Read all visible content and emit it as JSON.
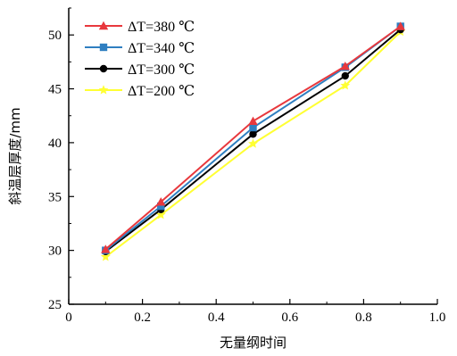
{
  "chart_data": {
    "type": "line",
    "title": "",
    "xlabel": "无量纲时间",
    "ylabel": "斜温层厚度/mm",
    "xlim": [
      0,
      1.0
    ],
    "ylim": [
      25,
      52.5
    ],
    "x_ticks": [
      "0",
      "0.2",
      "0.4",
      "0.6",
      "0.8",
      "1.0"
    ],
    "y_ticks": [
      "25",
      "30",
      "35",
      "40",
      "45",
      "50"
    ],
    "grid": false,
    "legend_position": "top-left",
    "x": [
      0.1,
      0.25,
      0.5,
      0.75,
      0.9
    ],
    "series": [
      {
        "name": "ΔT=380 ℃",
        "color": "#e8383d",
        "marker": "triangle",
        "values": [
          30.1,
          34.5,
          42.0,
          47.1,
          50.8
        ]
      },
      {
        "name": "ΔT=340 ℃",
        "color": "#2f7fc1",
        "marker": "square",
        "values": [
          30.0,
          34.1,
          41.4,
          47.0,
          50.8
        ]
      },
      {
        "name": "ΔT=300 ℃",
        "color": "#000000",
        "marker": "circle",
        "values": [
          29.9,
          33.8,
          40.8,
          46.2,
          50.5
        ]
      },
      {
        "name": "ΔT=200 ℃",
        "color": "#ffff33",
        "marker": "star",
        "values": [
          29.4,
          33.3,
          39.9,
          45.3,
          50.3
        ]
      }
    ]
  }
}
